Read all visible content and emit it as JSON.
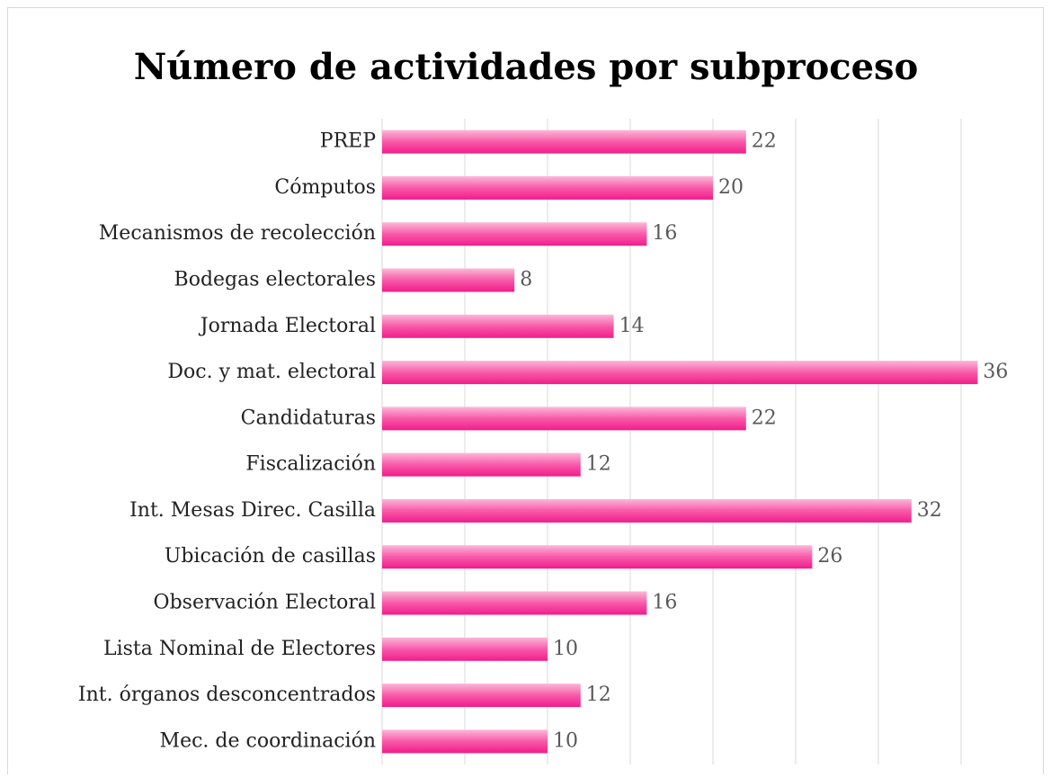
{
  "chart_data": {
    "type": "bar",
    "orientation": "horizontal",
    "title": "Número de actividades por subproceso",
    "categories": [
      "PREP",
      "Cómputos",
      "Mecanismos de recolección",
      "Bodegas electorales",
      "Jornada Electoral",
      "Doc. y mat. electoral",
      "Candidaturas",
      "Fiscalización",
      "Int. Mesas Direc. Casilla",
      "Ubicación de casillas",
      "Observación Electoral",
      "Lista Nominal de Electores",
      "Int. órganos desconcentrados",
      "Mec. de coordinación"
    ],
    "values": [
      22,
      20,
      16,
      8,
      14,
      36,
      22,
      12,
      32,
      26,
      16,
      10,
      12,
      10
    ],
    "color": "#f72a95",
    "xlim": [
      0,
      40
    ],
    "xticks": [
      0,
      5,
      10,
      15,
      20,
      25,
      30,
      35
    ],
    "grid": true
  }
}
